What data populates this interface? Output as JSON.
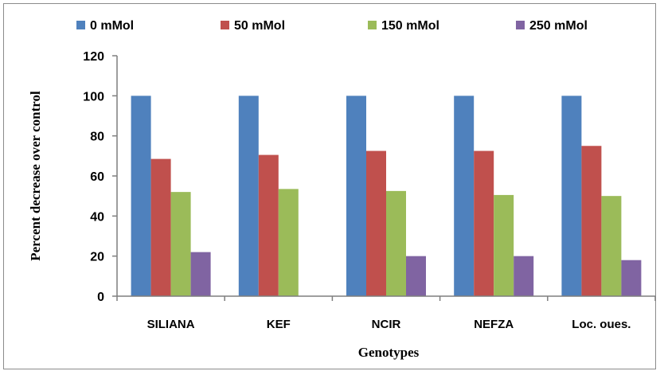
{
  "chart_data": {
    "type": "bar",
    "title": "",
    "xlabel": "Genotypes",
    "ylabel": "Percent decrease over control",
    "ylim": [
      0,
      120
    ],
    "yticks": [
      0,
      20,
      40,
      60,
      80,
      100,
      120
    ],
    "grid": false,
    "legend_position": "top",
    "categories": [
      "SILIANA",
      "KEF",
      "NCIR",
      "NEFZA",
      "Loc. oues."
    ],
    "series": [
      {
        "name": "0 mMol",
        "color": "#4f81bd",
        "values": [
          100,
          100,
          100,
          100,
          100
        ]
      },
      {
        "name": "50 mMol",
        "color": "#c0504d",
        "values": [
          68.5,
          70.5,
          72.5,
          72.5,
          75
        ]
      },
      {
        "name": "150 mMol",
        "color": "#9bbb59",
        "values": [
          52,
          53.5,
          52.5,
          50.5,
          50
        ]
      },
      {
        "name": "250 mMol",
        "color": "#8064a2",
        "values": [
          22,
          null,
          20,
          20,
          18
        ]
      }
    ]
  }
}
